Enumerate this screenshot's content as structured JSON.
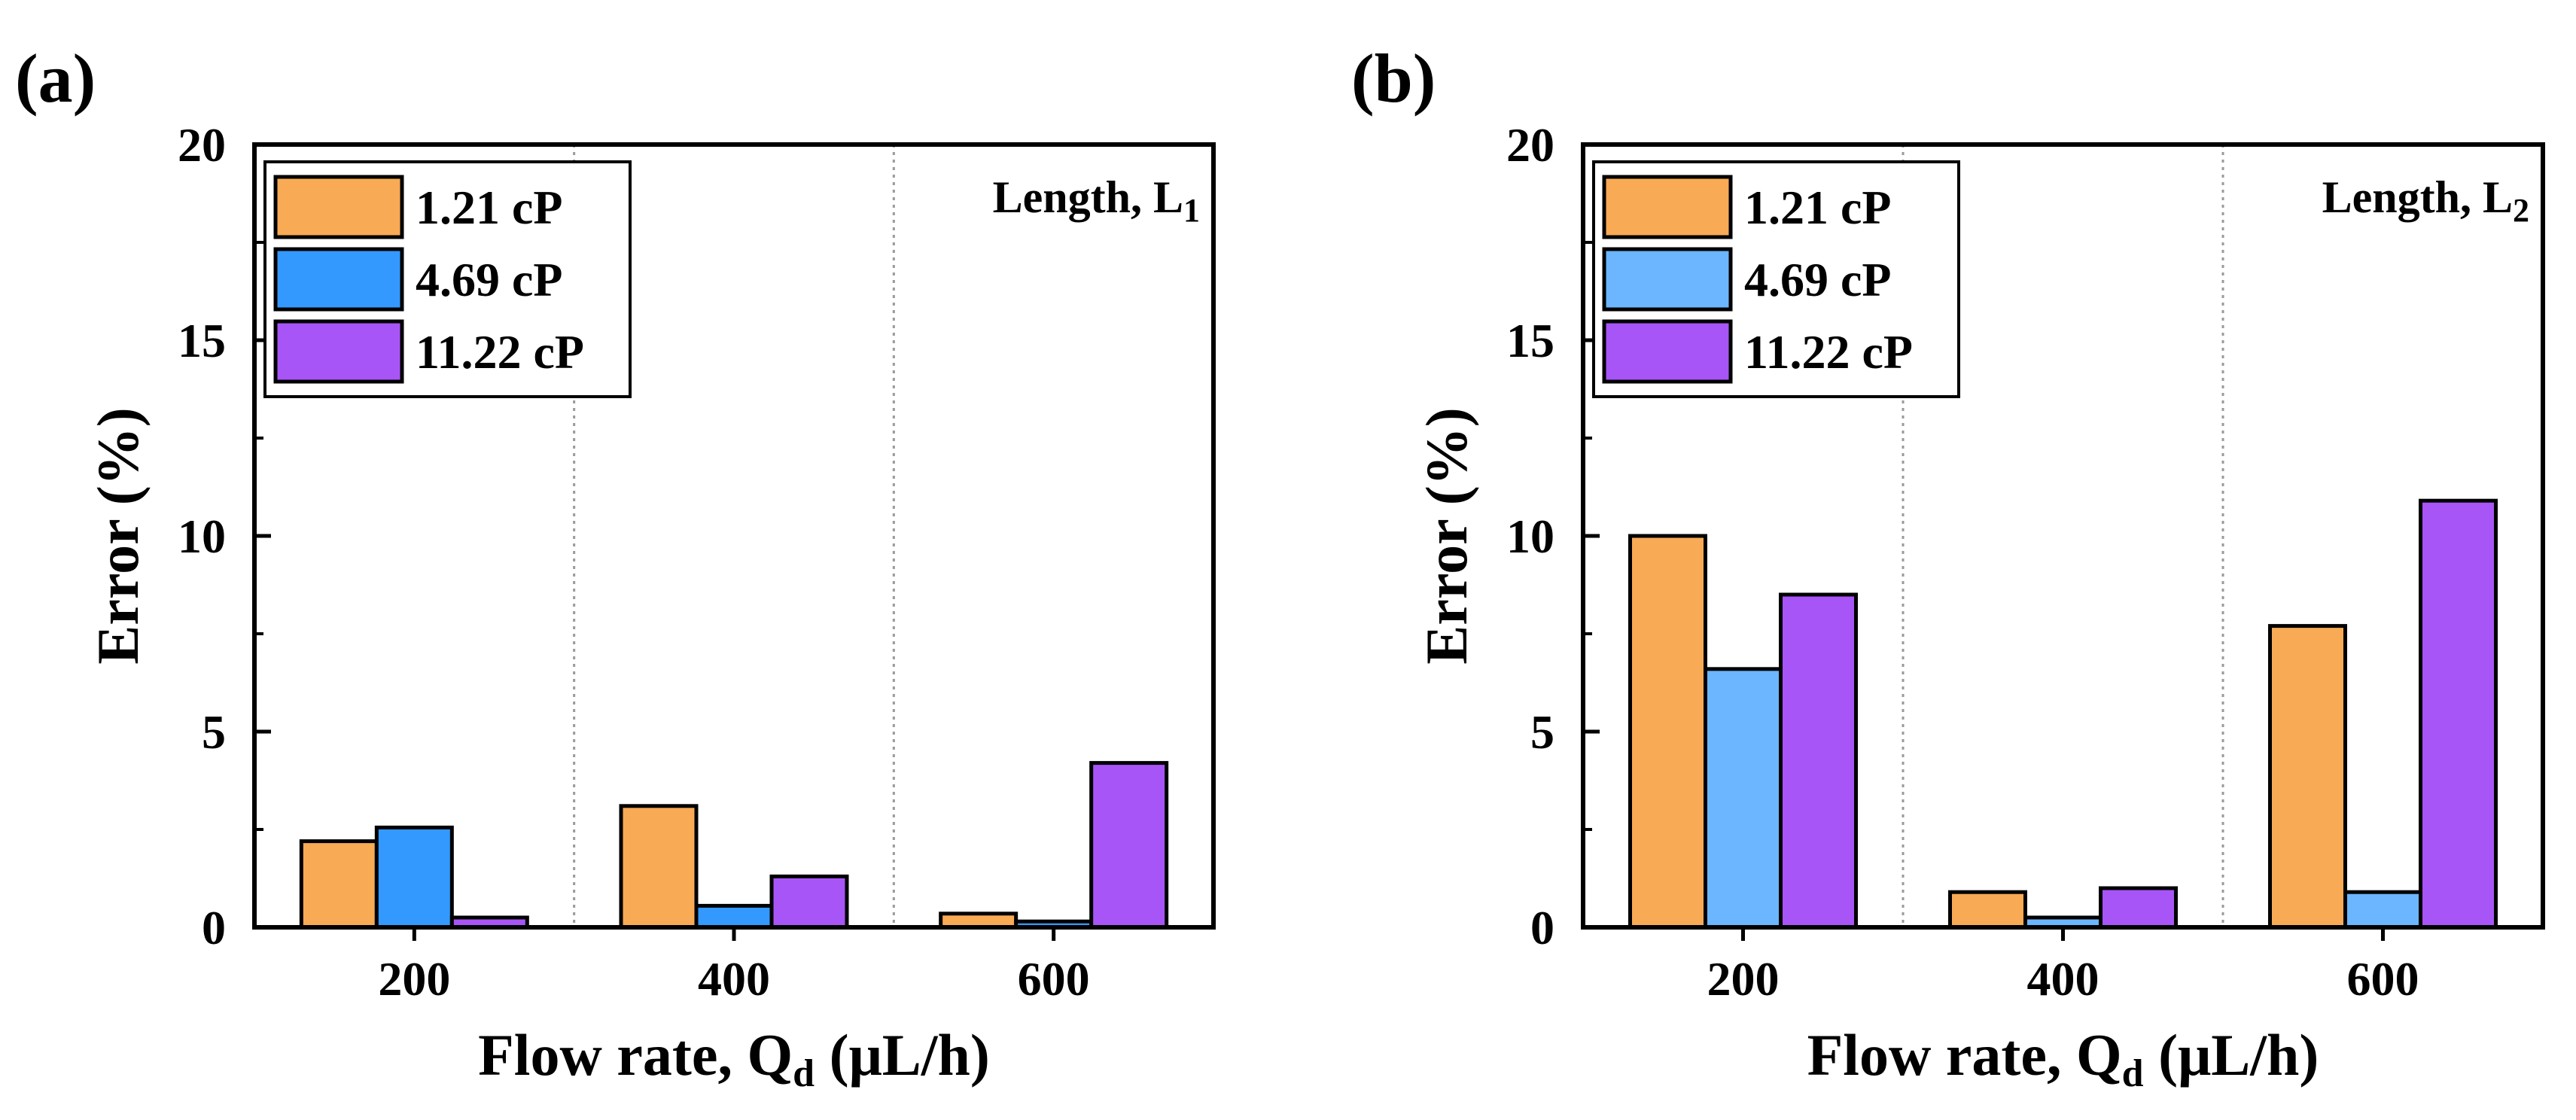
{
  "chart_data": [
    {
      "panel_label": "(a)",
      "type": "bar",
      "categories": [
        "200",
        "400",
        "600"
      ],
      "series": [
        {
          "name": "1.21 cP",
          "color": "#F9AA55",
          "values": [
            2.2,
            3.1,
            0.35
          ]
        },
        {
          "name": "4.69 cP",
          "color": "#3399FF",
          "values": [
            2.55,
            0.55,
            0.15
          ]
        },
        {
          "name": "11.22 cP",
          "color": "#A855F7",
          "values": [
            0.25,
            1.3,
            4.2
          ]
        }
      ],
      "xlabel": {
        "main": "Flow rate, Q",
        "sub": "d",
        "unit": " (μL/h)"
      },
      "ylabel": "Error (%)",
      "ylim": [
        0,
        20
      ],
      "yticks": [
        "0",
        "5",
        "10",
        "15",
        "20"
      ],
      "annotation": {
        "main": "Length, L",
        "sub": "1"
      },
      "legend_position": "top-left",
      "group_separators": "dotted vertical lines"
    },
    {
      "panel_label": "(b)",
      "type": "bar",
      "categories": [
        "200",
        "400",
        "600"
      ],
      "series": [
        {
          "name": "1.21 cP",
          "color": "#F9AA55",
          "values": [
            10.0,
            0.9,
            7.7
          ]
        },
        {
          "name": "4.69 cP",
          "color": "#6BB6FF",
          "values": [
            6.6,
            0.25,
            0.9
          ]
        },
        {
          "name": "11.22 cP",
          "color": "#A855F7",
          "values": [
            8.5,
            1.0,
            10.9
          ]
        }
      ],
      "xlabel": {
        "main": "Flow rate, Q",
        "sub": "d",
        "unit": " (μL/h)"
      },
      "ylabel": "Error (%)",
      "ylim": [
        0,
        20
      ],
      "yticks": [
        "0",
        "5",
        "10",
        "15",
        "20"
      ],
      "annotation": {
        "main": "Length, L",
        "sub": "2"
      },
      "legend_position": "top-left",
      "group_separators": "dotted vertical lines"
    }
  ]
}
